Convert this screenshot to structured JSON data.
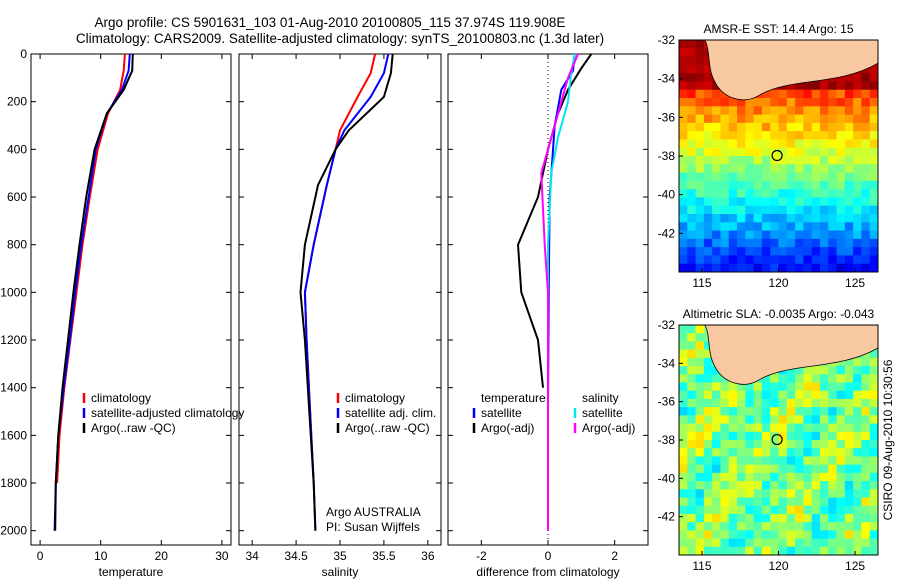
{
  "header": {
    "line1": "Argo profile: CS 5901631_103 01-Aug-2010 20100805_115 37.974S 119.908E",
    "line2": "Climatology: CARS2009. Satellite-adjusted climatology: synTS_20100803.nc (1.3d later)"
  },
  "side_label": "CSIRO 09-Aug-2010 10:30:56",
  "colors": {
    "climatology": "#ff0000",
    "satellite": "#0000ff",
    "argo": "#000000",
    "sat_diff": "#00e5ee",
    "argo_adj": "#ff00ff",
    "land": "#f8c8a0"
  },
  "chart_data": [
    {
      "type": "line",
      "xlabel": "temperature",
      "xlim": [
        -1.5,
        31.5
      ],
      "ylim": [
        0,
        2060
      ],
      "y_reversed": true,
      "xticks": [
        0,
        10,
        20,
        30
      ],
      "yticks": [
        0,
        200,
        400,
        600,
        800,
        1000,
        1200,
        1400,
        1600,
        1800,
        2000
      ],
      "legend": [
        "climatology",
        "satellite-adjusted climatology",
        "Argo(..raw -QC)"
      ],
      "series": [
        {
          "name": "climatology",
          "color": "#ff0000",
          "points": [
            [
              14.0,
              0
            ],
            [
              13.8,
              70
            ],
            [
              13.2,
              150
            ],
            [
              11.2,
              250
            ],
            [
              9.5,
              400
            ],
            [
              8.2,
              600
            ],
            [
              7.0,
              800
            ],
            [
              6.0,
              1000
            ],
            [
              5.0,
              1200
            ],
            [
              4.0,
              1400
            ],
            [
              3.2,
              1600
            ],
            [
              2.8,
              1800
            ]
          ]
        },
        {
          "name": "satellite-adjusted climatology",
          "color": "#0000ff",
          "points": [
            [
              14.8,
              0
            ],
            [
              14.6,
              70
            ],
            [
              13.5,
              150
            ],
            [
              11.0,
              250
            ],
            [
              9.2,
              400
            ],
            [
              8.0,
              600
            ],
            [
              6.8,
              800
            ],
            [
              5.8,
              1000
            ],
            [
              4.9,
              1200
            ],
            [
              3.9,
              1400
            ],
            [
              3.0,
              1600
            ],
            [
              2.6,
              1800
            ],
            [
              2.4,
              2000
            ]
          ]
        },
        {
          "name": "Argo(..raw -QC)",
          "color": "#000000",
          "points": [
            [
              15.3,
              0
            ],
            [
              15.2,
              70
            ],
            [
              13.8,
              150
            ],
            [
              11.0,
              250
            ],
            [
              9.0,
              400
            ],
            [
              7.6,
              600
            ],
            [
              6.5,
              800
            ],
            [
              5.5,
              1000
            ],
            [
              4.6,
              1200
            ],
            [
              3.7,
              1400
            ],
            [
              3.0,
              1600
            ],
            [
              2.6,
              1800
            ],
            [
              2.5,
              2000
            ]
          ]
        }
      ]
    },
    {
      "type": "line",
      "xlabel": "salinity",
      "xlim": [
        33.85,
        36.15
      ],
      "ylim": [
        0,
        2060
      ],
      "y_reversed": true,
      "xticks": [
        34,
        34.5,
        35,
        35.5,
        36
      ],
      "xtick_labels": [
        "34",
        "34.5",
        "35",
        "35.5",
        "36"
      ],
      "legend": [
        "climatology",
        "satellite adj. clim.",
        "Argo(..raw -QC)"
      ],
      "annotation": [
        "Argo AUSTRALIA",
        "PI: Susan Wijffels"
      ],
      "series": [
        {
          "name": "climatology",
          "color": "#ff0000",
          "points": [
            [
              35.4,
              0
            ],
            [
              35.35,
              80
            ],
            [
              35.2,
              180
            ],
            [
              35.0,
              320
            ],
            [
              34.95,
              400
            ],
            [
              34.85,
              550
            ],
            [
              34.7,
              800
            ],
            [
              34.6,
              1000
            ],
            [
              34.62,
              1200
            ],
            [
              34.66,
              1500
            ],
            [
              34.7,
              1800
            ]
          ]
        },
        {
          "name": "satellite adj. clim.",
          "color": "#0000ff",
          "points": [
            [
              35.55,
              0
            ],
            [
              35.5,
              80
            ],
            [
              35.35,
              180
            ],
            [
              35.05,
              320
            ],
            [
              34.95,
              400
            ],
            [
              34.85,
              550
            ],
            [
              34.7,
              800
            ],
            [
              34.6,
              1000
            ],
            [
              34.62,
              1200
            ],
            [
              34.66,
              1500
            ],
            [
              34.7,
              1800
            ],
            [
              34.72,
              2000
            ]
          ]
        },
        {
          "name": "Argo(..raw -QC)",
          "color": "#000000",
          "points": [
            [
              35.6,
              0
            ],
            [
              35.58,
              80
            ],
            [
              35.5,
              180
            ],
            [
              35.1,
              320
            ],
            [
              34.95,
              400
            ],
            [
              34.75,
              550
            ],
            [
              34.6,
              800
            ],
            [
              34.55,
              1000
            ],
            [
              34.6,
              1200
            ],
            [
              34.65,
              1500
            ],
            [
              34.7,
              1800
            ],
            [
              34.72,
              2000
            ]
          ]
        }
      ]
    },
    {
      "type": "line",
      "xlabel": "difference from climatology",
      "xlim": [
        -3,
        3
      ],
      "ylim": [
        0,
        2060
      ],
      "y_reversed": true,
      "xticks": [
        -2,
        0,
        2
      ],
      "legend_temperature": [
        "temperature",
        "satellite",
        "Argo(-adj)"
      ],
      "legend_salinity": [
        "salinity",
        "satellite",
        "Argo(-adj)"
      ],
      "series": [
        {
          "name": "temperature satellite",
          "color": "#0000ff",
          "points": [
            [
              0.8,
              0
            ],
            [
              0.75,
              70
            ],
            [
              0.4,
              150
            ],
            [
              0.2,
              300
            ],
            [
              0.05,
              600
            ],
            [
              0.02,
              1000
            ],
            [
              0,
              1500
            ],
            [
              0,
              2000
            ]
          ]
        },
        {
          "name": "temperature Argo(-adj)",
          "color": "#000000",
          "points": [
            [
              1.3,
              0
            ],
            [
              1.0,
              60
            ],
            [
              0.6,
              150
            ],
            [
              0.3,
              250
            ],
            [
              0,
              400
            ],
            [
              -0.3,
              600
            ],
            [
              -0.9,
              800
            ],
            [
              -0.8,
              1000
            ],
            [
              -0.3,
              1200
            ],
            [
              -0.15,
              1400
            ]
          ]
        },
        {
          "name": "salinity satellite",
          "color": "#00e5ee",
          "points": [
            [
              0.8,
              0
            ],
            [
              0.7,
              80
            ],
            [
              0.6,
              200
            ],
            [
              0.3,
              350
            ],
            [
              0.1,
              500
            ],
            [
              0,
              800
            ],
            [
              0,
              1200
            ],
            [
              0,
              2000
            ]
          ]
        },
        {
          "name": "salinity Argo(-adj)",
          "color": "#ff00ff",
          "points": [
            [
              0.9,
              0
            ],
            [
              0.6,
              100
            ],
            [
              0.3,
              250
            ],
            [
              -0.2,
              500
            ],
            [
              -0.1,
              800
            ],
            [
              0,
              1000
            ],
            [
              0,
              1300
            ],
            [
              0,
              2000
            ]
          ]
        }
      ]
    },
    {
      "type": "heatmap",
      "title": "AMSR-E SST: 14.4  Argo: 15",
      "xticks": [
        115,
        120,
        125
      ],
      "yticks": [
        -32,
        -34,
        -36,
        -38,
        -40,
        -42
      ],
      "xlim": [
        113.5,
        126.5
      ],
      "ylim": [
        -44,
        -32
      ],
      "marker": [
        119.908,
        -37.974
      ]
    },
    {
      "type": "heatmap",
      "title": "Altimetric SLA: -0.0035  Argo: -0.043",
      "xticks": [
        115,
        120,
        125
      ],
      "yticks": [
        -32,
        -34,
        -36,
        -38,
        -40,
        -42
      ],
      "xlim": [
        113.5,
        126.5
      ],
      "ylim": [
        -44,
        -32
      ],
      "marker": [
        119.908,
        -37.974
      ]
    }
  ]
}
